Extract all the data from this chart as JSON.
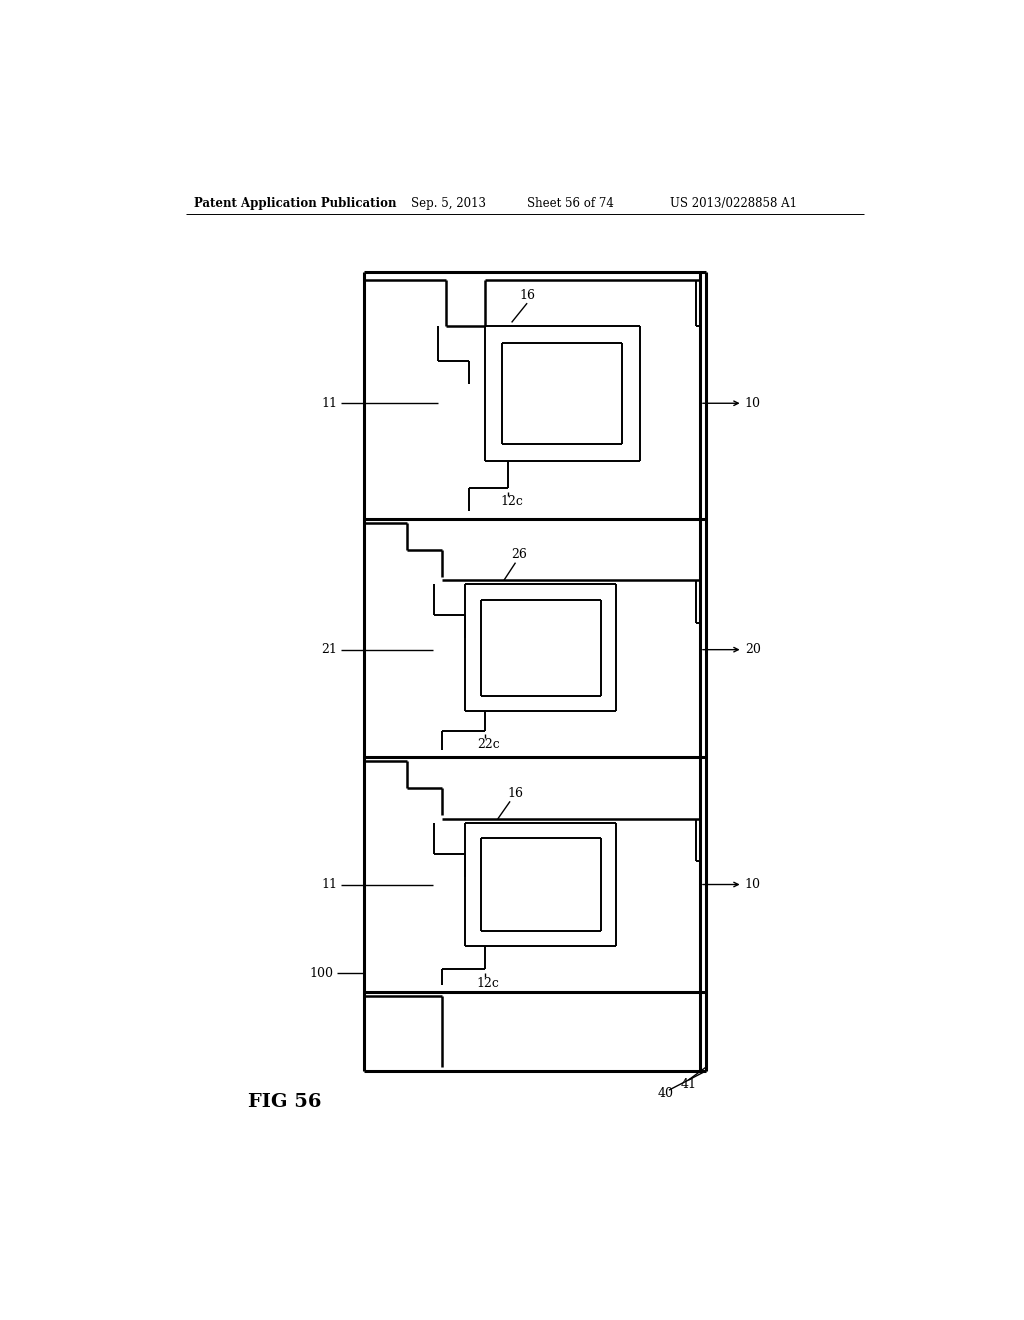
{
  "bg_color": "#ffffff",
  "header_left": "Patent Application Publication",
  "header_mid1": "Sep. 5, 2013",
  "header_mid2": "Sheet 56 of 74",
  "header_right": "US 2013/0228858 A1",
  "fig_label": "FIG 56"
}
